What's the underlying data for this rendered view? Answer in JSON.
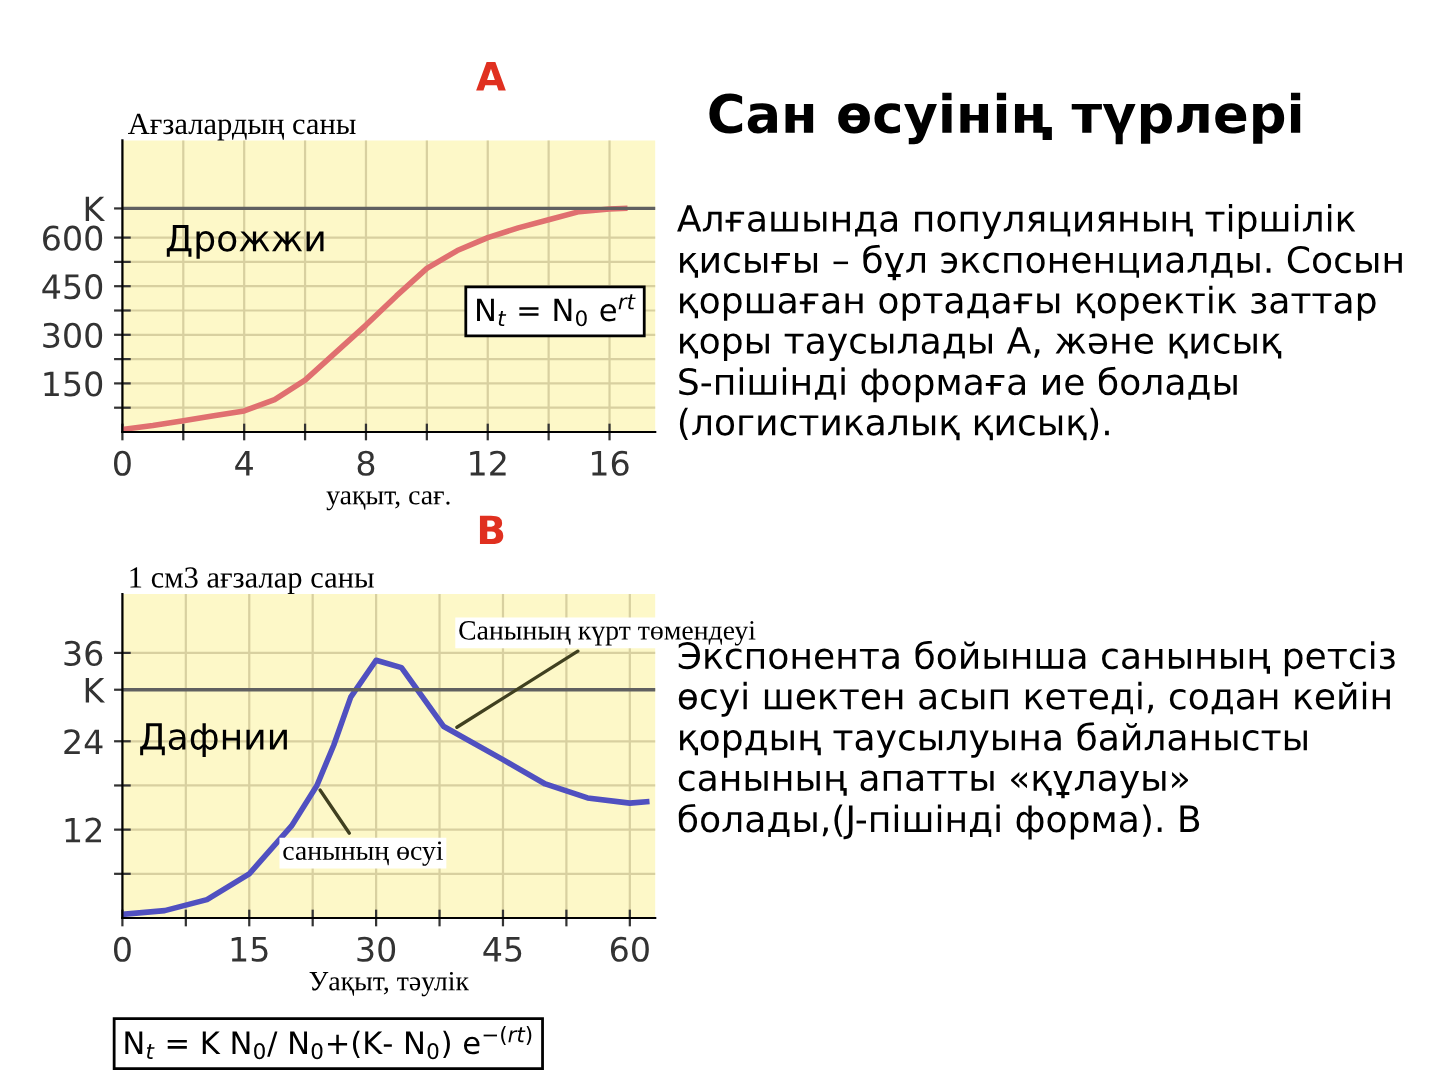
{
  "chart_data": [
    {
      "type": "line",
      "title": "A",
      "ylabel": "Ағзалардың саны",
      "xlabel": "уақыт, сағ.",
      "x": [
        0,
        1,
        2,
        3,
        4,
        5,
        6,
        7,
        8,
        9,
        10,
        11,
        12,
        13,
        14,
        15,
        16,
        16.5
      ],
      "series": [
        {
          "color": "#e07070",
          "values": [
            8,
            20,
            35,
            50,
            65,
            100,
            160,
            245,
            330,
            420,
            505,
            560,
            600,
            630,
            655,
            680,
            688,
            690
          ]
        }
      ],
      "xlim": [
        0,
        17.5
      ],
      "ylim": [
        0,
        900
      ],
      "xticks": [
        0,
        {
          "value": 2,
          "label": null
        },
        4,
        {
          "value": 6,
          "label": null
        },
        8,
        {
          "value": 10,
          "label": null
        },
        12,
        {
          "value": 14,
          "label": null
        },
        16
      ],
      "yticks": [
        {
          "value": 75,
          "label": null
        },
        150,
        {
          "value": 225,
          "label": null
        },
        300,
        {
          "value": 375,
          "label": null
        },
        450,
        {
          "value": 525,
          "label": null
        },
        600,
        {
          "value": 690,
          "label": "K"
        }
      ],
      "ref_lines": [
        {
          "axis": "y",
          "value": 690,
          "label": null,
          "color": "#606060"
        }
      ],
      "annotations": [
        "Дрожжи",
        "N$_{t}$ = N$_{0}$ e$^{rt}$"
      ],
      "grid": true,
      "marker": "none",
      "line_style": "solid"
    },
    {
      "type": "line",
      "title": "B",
      "ylabel": "1 см3 ағзалар саны",
      "xlabel": "Уақыт, тәулік",
      "x": [
        0,
        5,
        10,
        15,
        20,
        23,
        25,
        27,
        30,
        33,
        38,
        45,
        50,
        55,
        60,
        62
      ],
      "series": [
        {
          "color": "#5050c0",
          "values": [
            0.5,
            1,
            2.5,
            6,
            12.5,
            18,
            23.5,
            30,
            35,
            34,
            26,
            21.5,
            18.2,
            16.3,
            15.6,
            15.8
          ]
        }
      ],
      "xlim": [
        0,
        63
      ],
      "ylim": [
        0,
        44
      ],
      "xticks": [
        0,
        {
          "value": 7.5,
          "label": null
        },
        15,
        {
          "value": 22.5,
          "label": null
        },
        30,
        {
          "value": 37.5,
          "label": null
        },
        45,
        {
          "value": 52.5,
          "label": null
        },
        60
      ],
      "yticks": [
        {
          "value": 6,
          "label": null
        },
        12,
        {
          "value": 18,
          "label": null
        },
        24,
        {
          "value": 31,
          "label": "K"
        },
        36
      ],
      "ref_lines": [
        {
          "axis": "y",
          "value": 31,
          "label": null,
          "color": "#606060"
        }
      ],
      "annotations": [
        "Дафнии",
        {
          "text": "Санының күрт төмендеуі",
          "x": 39,
          "y": 25.5
        },
        {
          "text": "санының өсуі",
          "x": 23,
          "y": 18
        },
        "N$_{t}$ = K N$_{0}$/ N$_{0}$+(K- N$_{0}$) e$^{−(rt)}$"
      ],
      "grid": true,
      "marker": "none",
      "line_style": "solid"
    },
    {
      "type": "other",
      "title": "Сан өсуінің түрлері",
      "annotations": [
        "Алғашында популяцияның тіршілік қисығы – бұл экспоненциалды. Сосын қоршаған ортадағы қоректік заттар қоры таусылады А, және қисық S-пішінді формаға ие болады (логистикалық қисық).",
        "Экспонента бойынша санының ретсіз өсуі шектен асып кетеді, содан кейін қордың таусылуына байланысты санының апатты «құлауы» болады,(J-пішінді форма). В"
      ]
    }
  ]
}
